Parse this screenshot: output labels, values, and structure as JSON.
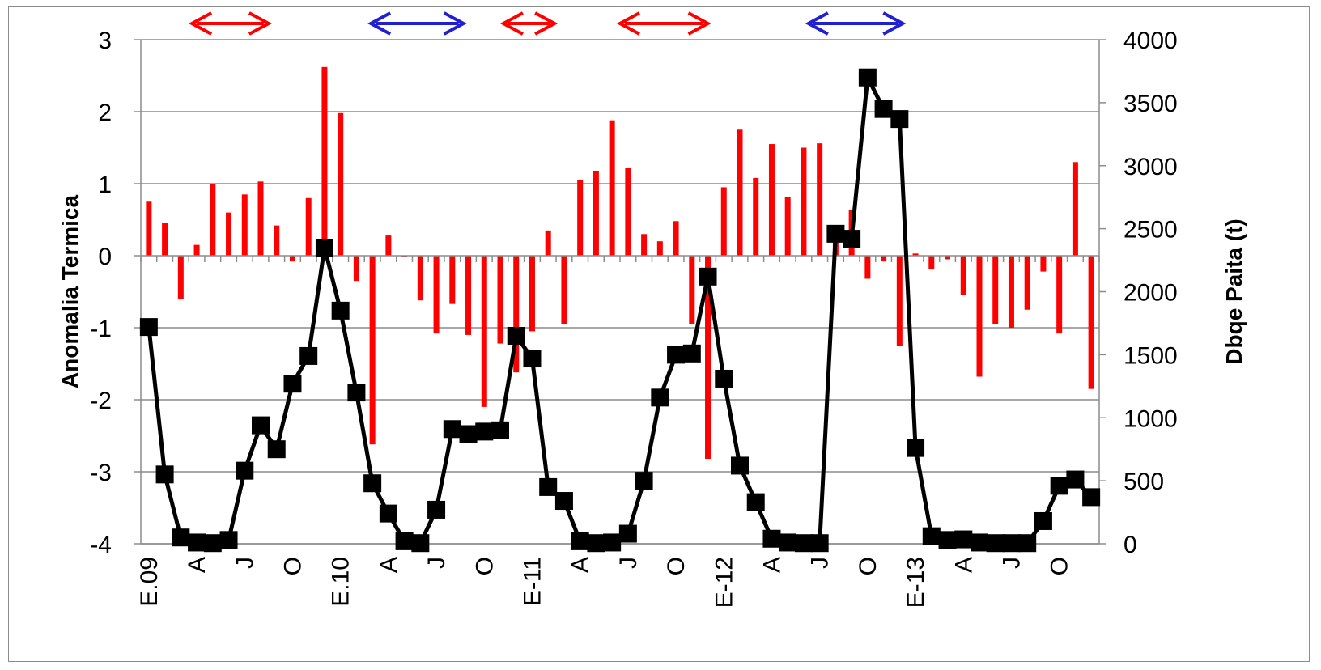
{
  "chart_data": {
    "type": "bar+line",
    "title": "",
    "y_left": {
      "label": "Anomalia Termica",
      "range": [
        -4,
        3
      ],
      "ticks": [
        "-4",
        "-3",
        "-2",
        "-1",
        "0",
        "1",
        "2",
        "3"
      ]
    },
    "y_right": {
      "label": "Dbqe Paita (t)",
      "range": [
        0,
        4000
      ],
      "ticks": [
        "0",
        "500",
        "1000",
        "1500",
        "2000",
        "2500",
        "3000",
        "3500",
        "4000"
      ]
    },
    "x_tick_labels": [
      {
        "index": 0,
        "label": "E.09"
      },
      {
        "index": 3,
        "label": "A"
      },
      {
        "index": 6,
        "label": "J"
      },
      {
        "index": 9,
        "label": "O"
      },
      {
        "index": 12,
        "label": "E.10"
      },
      {
        "index": 15,
        "label": "A"
      },
      {
        "index": 18,
        "label": "J"
      },
      {
        "index": 21,
        "label": "O"
      },
      {
        "index": 24,
        "label": "E-11"
      },
      {
        "index": 27,
        "label": "A"
      },
      {
        "index": 30,
        "label": "J"
      },
      {
        "index": 33,
        "label": "O"
      },
      {
        "index": 36,
        "label": "E-12"
      },
      {
        "index": 39,
        "label": "A"
      },
      {
        "index": 42,
        "label": "J"
      },
      {
        "index": 45,
        "label": "O"
      },
      {
        "index": 48,
        "label": "E-13"
      },
      {
        "index": 51,
        "label": "A"
      },
      {
        "index": 54,
        "label": "J"
      },
      {
        "index": 57,
        "label": "O"
      }
    ],
    "grid": "horizontal",
    "series": [
      {
        "kind": "bar",
        "axis": "left",
        "color": "#ff0000",
        "values": [
          0.75,
          0.46,
          -0.6,
          0.15,
          1.0,
          0.6,
          0.85,
          1.03,
          0.42,
          -0.08,
          0.8,
          2.62,
          1.98,
          -0.35,
          -2.62,
          0.28,
          -0.02,
          -0.62,
          -1.08,
          -0.67,
          -1.1,
          -2.1,
          -1.22,
          -1.62,
          -1.05,
          0.35,
          -0.95,
          1.05,
          1.18,
          1.88,
          1.22,
          0.3,
          0.2,
          0.48,
          -0.95,
          -2.82,
          0.95,
          1.75,
          1.08,
          1.55,
          0.82,
          1.5,
          1.56,
          0.3,
          0.64,
          -0.32,
          -0.08,
          -1.25,
          0.03,
          -0.18,
          -0.05,
          -0.55,
          -1.68,
          -0.95,
          -1.0,
          -0.75,
          -0.22,
          -1.08,
          1.3,
          -1.85
        ]
      },
      {
        "kind": "line",
        "axis": "right",
        "color": "#000000",
        "marker": "square",
        "values": [
          1720,
          550,
          50,
          10,
          5,
          30,
          580,
          940,
          750,
          1270,
          1490,
          2350,
          1850,
          1200,
          480,
          240,
          20,
          5,
          270,
          910,
          870,
          890,
          900,
          1650,
          1470,
          450,
          340,
          20,
          5,
          10,
          80,
          500,
          1160,
          1500,
          1510,
          2120,
          1310,
          620,
          330,
          40,
          10,
          5,
          5,
          2460,
          2420,
          3700,
          3450,
          3370,
          760,
          60,
          30,
          35,
          10,
          5,
          5,
          5,
          180,
          460,
          510,
          370
        ]
      }
    ],
    "annotations": [
      {
        "type": "double-arrow",
        "color": "#ff0000",
        "from": 3.2,
        "to": 8.0
      },
      {
        "type": "double-arrow",
        "color": "#2020d0",
        "from": 14.4,
        "to": 20.2
      },
      {
        "type": "double-arrow",
        "color": "#ff0000",
        "from": 22.7,
        "to": 25.9
      },
      {
        "type": "double-arrow",
        "color": "#ff0000",
        "from": 30.0,
        "to": 35.5
      },
      {
        "type": "double-arrow",
        "color": "#2020d0",
        "from": 41.8,
        "to": 47.7
      }
    ]
  }
}
